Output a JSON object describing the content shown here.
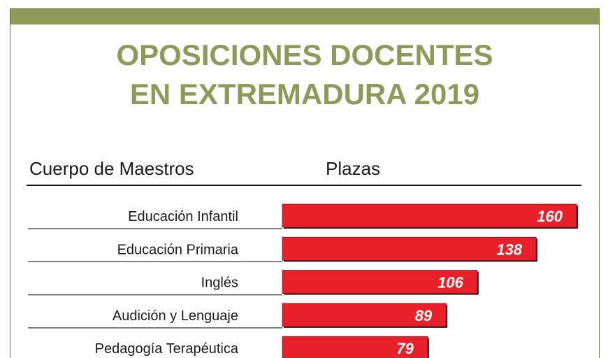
{
  "title_line1": "OPOSICIONES DOCENTES",
  "title_line2": "EN EXTREMADURA 2019",
  "header_left": "Cuerpo de Maestros",
  "header_right": "Plazas",
  "colors": {
    "bar": "#e8202a",
    "accent": "#8f9a58",
    "value_text": "#ffffff"
  },
  "chart_data": {
    "type": "bar",
    "orientation": "horizontal",
    "title": "OPOSICIONES DOCENTES EN EXTREMADURA 2019",
    "categories": [
      "Educación Infantil",
      "Educación Primaria",
      "Inglés",
      "Audición y Lenguaje",
      "Pedagogía Terapéutica"
    ],
    "values": [
      160,
      138,
      106,
      89,
      79
    ],
    "xlabel": "Plazas",
    "ylabel": "Cuerpo de Maestros",
    "xlim": [
      0,
      160
    ],
    "grid": false,
    "legend": "none"
  }
}
